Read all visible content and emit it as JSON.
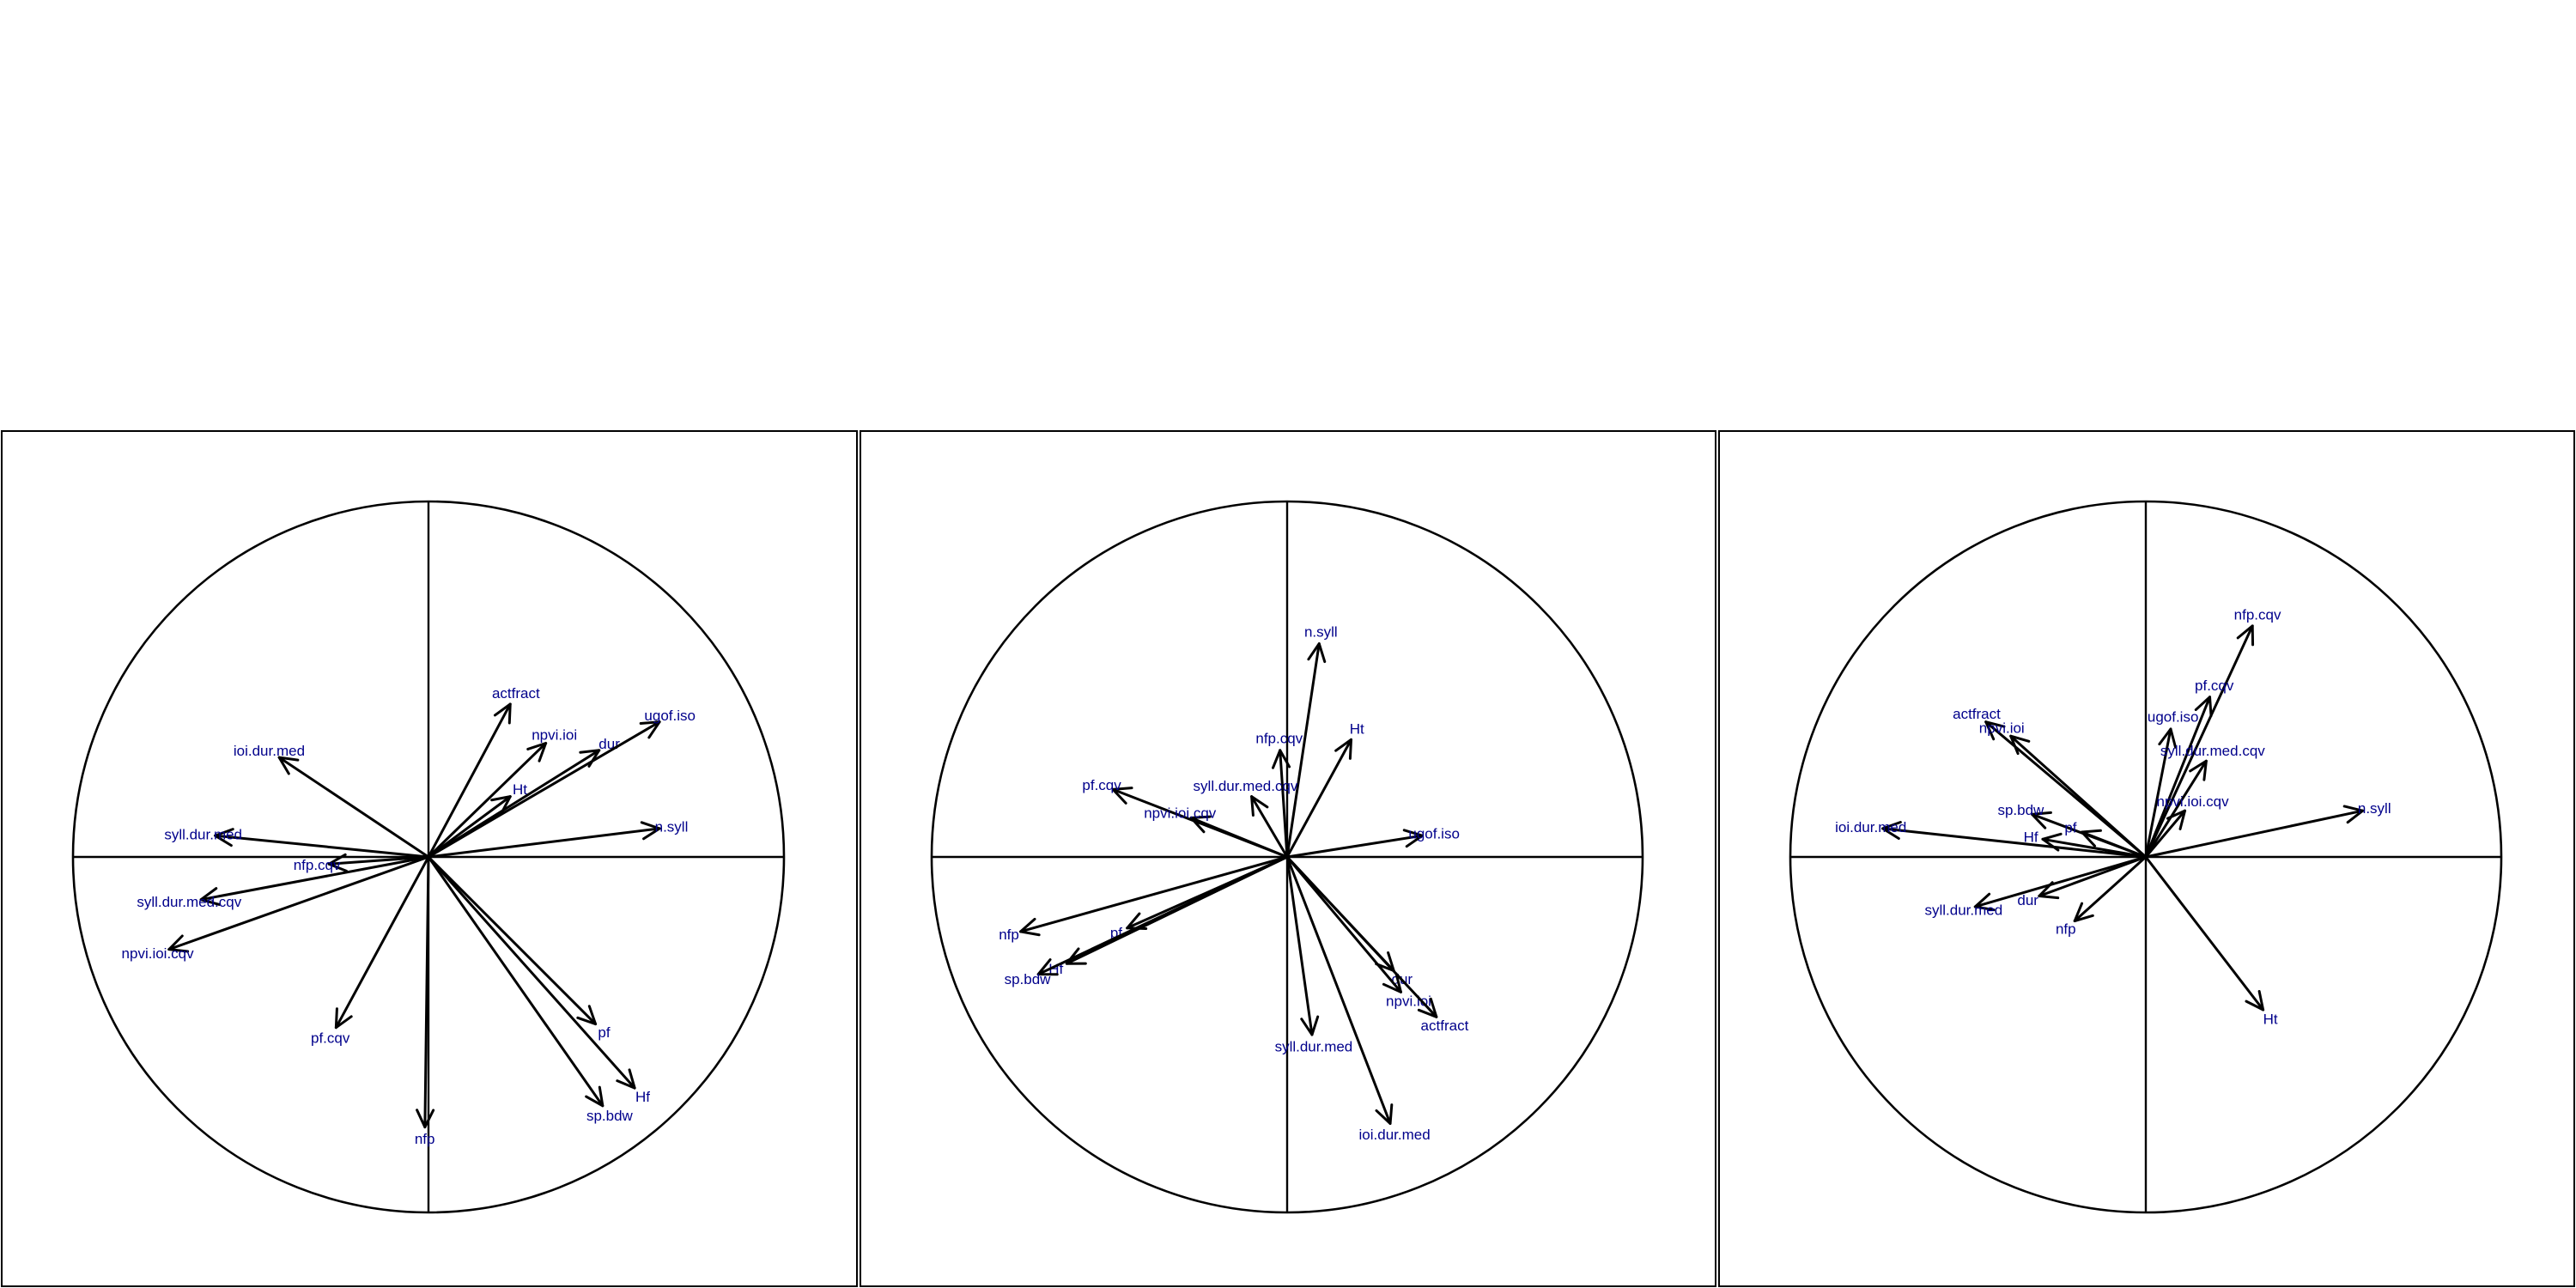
{
  "chart_data": [
    {
      "type": "scatter",
      "kind": "correlation-circle",
      "xlim": [
        -1,
        1
      ],
      "ylim": [
        -1,
        1
      ],
      "grid": false,
      "variables": [
        {
          "label": "actfract",
          "x": 0.23,
          "y": 0.43
        },
        {
          "label": "ioi.dur.med",
          "x": -0.42,
          "y": 0.28
        },
        {
          "label": "npvi.ioi",
          "x": 0.33,
          "y": 0.32
        },
        {
          "label": "dur",
          "x": 0.48,
          "y": 0.3
        },
        {
          "label": "ugof.iso",
          "x": 0.65,
          "y": 0.38
        },
        {
          "label": "Ht",
          "x": 0.23,
          "y": 0.17
        },
        {
          "label": "n.syll",
          "x": 0.65,
          "y": 0.08
        },
        {
          "label": "syll.dur.med",
          "x": -0.6,
          "y": 0.06
        },
        {
          "label": "nfp.cqv",
          "x": -0.28,
          "y": -0.02
        },
        {
          "label": "syll.dur.med.cqv",
          "x": -0.64,
          "y": -0.12
        },
        {
          "label": "npvi.ioi.cqv",
          "x": -0.73,
          "y": -0.26
        },
        {
          "label": "pf.cqv",
          "x": -0.26,
          "y": -0.48
        },
        {
          "label": "nfp",
          "x": -0.01,
          "y": -0.76
        },
        {
          "label": "pf",
          "x": 0.47,
          "y": -0.47
        },
        {
          "label": "Hf",
          "x": 0.58,
          "y": -0.65
        },
        {
          "label": "sp.bdw",
          "x": 0.49,
          "y": -0.7
        }
      ]
    },
    {
      "type": "scatter",
      "kind": "correlation-circle",
      "xlim": [
        -1,
        1
      ],
      "ylim": [
        -1,
        1
      ],
      "grid": false,
      "variables": [
        {
          "label": "n.syll",
          "x": 0.09,
          "y": 0.6
        },
        {
          "label": "Ht",
          "x": 0.18,
          "y": 0.33
        },
        {
          "label": "nfp.cqv",
          "x": -0.02,
          "y": 0.3
        },
        {
          "label": "syll.dur.med.cqv",
          "x": -0.1,
          "y": 0.17
        },
        {
          "label": "pf.cqv",
          "x": -0.49,
          "y": 0.19
        },
        {
          "label": "npvi.ioi.cqv",
          "x": -0.27,
          "y": 0.11
        },
        {
          "label": "ugof.iso",
          "x": 0.38,
          "y": 0.06
        },
        {
          "label": "nfp",
          "x": -0.75,
          "y": -0.21
        },
        {
          "label": "pf",
          "x": -0.45,
          "y": -0.2
        },
        {
          "label": "Hf",
          "x": -0.62,
          "y": -0.3
        },
        {
          "label": "sp.bdw",
          "x": -0.7,
          "y": -0.33
        },
        {
          "label": "dur",
          "x": 0.3,
          "y": -0.32
        },
        {
          "label": "npvi.ioi",
          "x": 0.32,
          "y": -0.38
        },
        {
          "label": "actfract",
          "x": 0.42,
          "y": -0.45
        },
        {
          "label": "syll.dur.med",
          "x": 0.07,
          "y": -0.5
        },
        {
          "label": "ioi.dur.med",
          "x": 0.29,
          "y": -0.75
        }
      ]
    },
    {
      "type": "scatter",
      "kind": "correlation-circle",
      "xlim": [
        -1,
        1
      ],
      "ylim": [
        -1,
        1
      ],
      "grid": false,
      "variables": [
        {
          "label": "nfp.cqv",
          "x": 0.3,
          "y": 0.65
        },
        {
          "label": "pf.cqv",
          "x": 0.18,
          "y": 0.45
        },
        {
          "label": "ugof.iso",
          "x": 0.07,
          "y": 0.36
        },
        {
          "label": "syll.dur.med.cqv",
          "x": 0.17,
          "y": 0.27
        },
        {
          "label": "npvi.ioi.cqv",
          "x": 0.11,
          "y": 0.13
        },
        {
          "label": "actfract",
          "x": -0.45,
          "y": 0.38
        },
        {
          "label": "npvi.ioi",
          "x": -0.38,
          "y": 0.34
        },
        {
          "label": "n.syll",
          "x": 0.61,
          "y": 0.13
        },
        {
          "label": "ioi.dur.med",
          "x": -0.74,
          "y": 0.08
        },
        {
          "label": "sp.bdw",
          "x": -0.32,
          "y": 0.12
        },
        {
          "label": "pf",
          "x": -0.18,
          "y": 0.07
        },
        {
          "label": "Hf",
          "x": -0.29,
          "y": 0.05
        },
        {
          "label": "dur",
          "x": -0.3,
          "y": -0.11
        },
        {
          "label": "syll.dur.med",
          "x": -0.48,
          "y": -0.14
        },
        {
          "label": "nfp",
          "x": -0.2,
          "y": -0.18
        },
        {
          "label": "Ht",
          "x": 0.33,
          "y": -0.43
        }
      ]
    }
  ],
  "colors": {
    "label_text": "#00008b",
    "arrow": "#000000",
    "frame": "#000000",
    "background": "#ffffff"
  }
}
